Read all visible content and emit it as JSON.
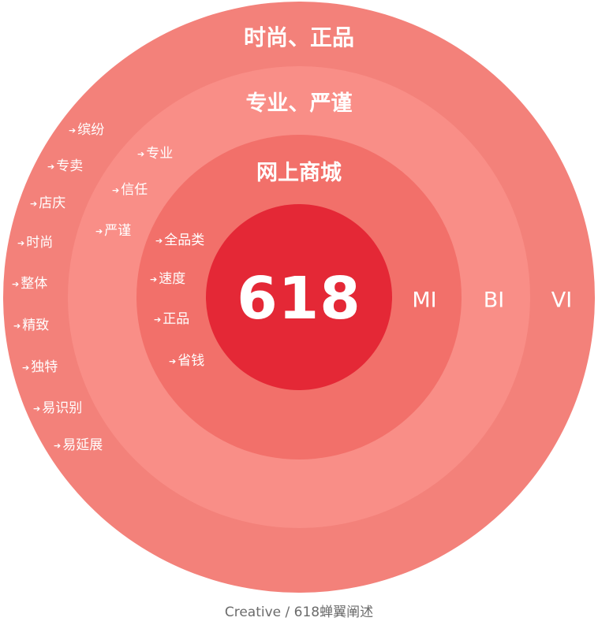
{
  "diagram": {
    "center_value": "618",
    "rings": [
      {
        "id": "outer",
        "title": "时尚、正品",
        "tag": "VI",
        "color": "#F3817A",
        "items": [
          "缤纷",
          "专卖",
          "店庆",
          "时尚",
          "整体",
          "精致",
          "独特",
          "易识别",
          "易延展"
        ]
      },
      {
        "id": "middle",
        "title": "专业、严谨",
        "tag": "BI",
        "color": "#F98E87",
        "items": [
          "专业",
          "信任",
          "严谨"
        ]
      },
      {
        "id": "inner",
        "title": "网上商城",
        "tag": "MI",
        "color": "#F2706A",
        "items": [
          "全品类",
          "速度",
          "正品",
          "省钱"
        ]
      }
    ],
    "core_color": "#E42836"
  },
  "caption": "Creative / 618蝉翼阐述",
  "icons": {
    "item_bullet": "arrow-right-icon"
  }
}
